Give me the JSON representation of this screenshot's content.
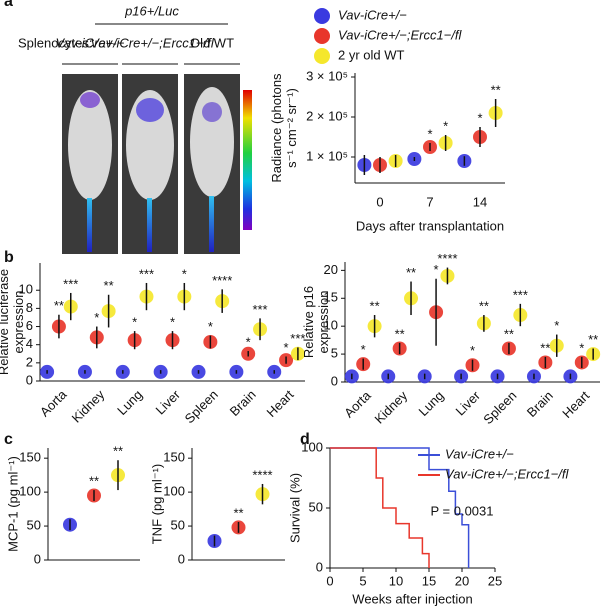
{
  "panel_labels": [
    "a",
    "b",
    "c",
    "d"
  ],
  "imaging": {
    "group": "Splenocytes:",
    "header": "p16+/Luc",
    "labels": [
      "Vav-iCre+/−",
      "Vav-iCre+/−;Ercc1−/fl",
      "Old WT"
    ]
  },
  "chart_data": [
    {
      "type": "dot",
      "categories": [
        "0",
        "7",
        "14"
      ],
      "xlabel": "Days after transplantation",
      "ylabel": [
        "Radiance (photons",
        "s⁻¹ cm⁻² sr⁻¹)"
      ],
      "ylim": [
        35000,
        310000
      ],
      "yticks": [
        {
          "value": 100000,
          "label": "1 × 10⁵"
        },
        {
          "value": 200000,
          "label": "2 × 10⁵"
        },
        {
          "value": 300000,
          "label": "3 × 10⁵"
        }
      ],
      "legend": true,
      "series": [
        {
          "name": "Vav-iCre+/−",
          "color": "#3a3ae0",
          "values": [
            80000,
            95000,
            90000
          ],
          "errors": [
            25000,
            5000,
            12000
          ]
        },
        {
          "name": "Vav-iCre+/−;Ercc1−/fl",
          "color": "#e8362b",
          "values": [
            80000,
            125000,
            150000
          ],
          "errors": [
            20000,
            10000,
            25000
          ],
          "stars": [
            null,
            "*",
            "*"
          ]
        },
        {
          "name": "2 yr old WT",
          "color": "#f5e72c",
          "values": [
            90000,
            135000,
            210000
          ],
          "errors": [
            15000,
            20000,
            35000
          ],
          "stars": [
            null,
            "*",
            "**"
          ]
        }
      ]
    },
    {
      "type": "dot",
      "categories": [
        "Aorta",
        "Kidney",
        "Lung",
        "Liver",
        "Spleen",
        "Brain",
        "Heart"
      ],
      "ylabel": [
        "Relative luciferase",
        "expression"
      ],
      "ylim": [
        0,
        13
      ],
      "yticks": [
        0,
        2,
        4,
        6,
        8,
        10
      ],
      "series": [
        {
          "color": "#3a3ae0",
          "values": [
            1,
            1,
            1,
            1,
            1,
            1,
            1
          ],
          "errors": [
            0.2,
            0.2,
            0.2,
            0.2,
            0.2,
            0.2,
            0.2
          ]
        },
        {
          "color": "#e8362b",
          "values": [
            6,
            4.8,
            4.5,
            4.5,
            4.3,
            3,
            2.3
          ],
          "errors": [
            1.3,
            1.2,
            1,
            1,
            0.7,
            0.3,
            0.4
          ],
          "stars": [
            "**",
            "*",
            "*",
            "*",
            "*",
            "*",
            "*"
          ]
        },
        {
          "color": "#f5e72c",
          "values": [
            8.2,
            7.7,
            9.3,
            9.3,
            8.8,
            5.7,
            3
          ],
          "errors": [
            1.5,
            1.8,
            1.5,
            1.5,
            1.3,
            1.2,
            0.7
          ],
          "stars": [
            "***",
            "**",
            "***",
            "*",
            "****",
            "***",
            "***"
          ]
        }
      ]
    },
    {
      "type": "dot",
      "categories": [
        "Aorta",
        "Kidney",
        "Lung",
        "Liver",
        "Spleen",
        "Brain",
        "Heart"
      ],
      "ylabel": [
        "Relative p16",
        "expression"
      ],
      "ylim": [
        0,
        21.5
      ],
      "yticks": [
        0,
        5,
        10,
        15,
        20
      ],
      "series": [
        {
          "color": "#3a3ae0",
          "values": [
            1,
            1,
            1,
            1,
            1,
            1,
            1
          ],
          "errors": [
            0.5,
            0.5,
            0.5,
            0.5,
            0.5,
            0.5,
            0.5
          ]
        },
        {
          "color": "#e8362b",
          "values": [
            3.2,
            6,
            12.5,
            3,
            6,
            3.5,
            3.5
          ],
          "errors": [
            1,
            1,
            6,
            1,
            1,
            1,
            1
          ],
          "stars": [
            "*",
            "**",
            "*",
            "*",
            "**",
            "**",
            "*"
          ]
        },
        {
          "color": "#f5e72c",
          "values": [
            10,
            15,
            19,
            10.5,
            12,
            6.5,
            5
          ],
          "errors": [
            2,
            3,
            1.5,
            1.5,
            2,
            2,
            1
          ],
          "stars": [
            "**",
            "**",
            "****",
            "**",
            "***",
            "*",
            "**"
          ]
        }
      ]
    },
    {
      "type": "dot",
      "categories": [
        null
      ],
      "ylabel": [
        "MCP-1 (pg ml⁻¹)"
      ],
      "ylim": [
        0,
        165
      ],
      "yticks": [
        0,
        50,
        100,
        150
      ],
      "series": [
        {
          "color": "#3a3ae0",
          "values": [
            52
          ],
          "errors": [
            8
          ]
        },
        {
          "color": "#e8362b",
          "values": [
            95
          ],
          "errors": [
            8
          ],
          "stars": [
            "**"
          ]
        },
        {
          "color": "#f5e72c",
          "values": [
            125
          ],
          "errors": [
            22
          ],
          "stars": [
            "**"
          ]
        }
      ]
    },
    {
      "type": "dot",
      "categories": [
        null
      ],
      "ylabel": [
        "TNF (pg ml⁻¹)"
      ],
      "ylim": [
        0,
        165
      ],
      "yticks": [
        0,
        50,
        100,
        150
      ],
      "series": [
        {
          "color": "#3a3ae0",
          "values": [
            28
          ],
          "errors": [
            8
          ]
        },
        {
          "color": "#e8362b",
          "values": [
            48
          ],
          "errors": [
            8
          ],
          "stars": [
            "**"
          ]
        },
        {
          "color": "#f5e72c",
          "values": [
            97
          ],
          "errors": [
            15
          ],
          "stars": [
            "****"
          ]
        }
      ]
    },
    {
      "type": "step",
      "xlabel": "Weeks after injection",
      "ylabel": [
        "Survival (%)"
      ],
      "xlim": [
        0,
        25
      ],
      "xticks": [
        0,
        5,
        10,
        15,
        20,
        25
      ],
      "ylim": [
        0,
        100
      ],
      "yticks": [
        0,
        50,
        100
      ],
      "annotation": "P = 0.0031",
      "legend": true,
      "series": [
        {
          "name": "Vav-iCre+/−",
          "color": "#3b4fd8",
          "x": [
            0,
            15,
            18,
            19,
            20,
            21
          ],
          "values": [
            100,
            82,
            64,
            45,
            36,
            18
          ]
        },
        {
          "name": "Vav-iCre+/−;Ercc1−/fl",
          "color": "#e8362b",
          "x": [
            0,
            7,
            8,
            10,
            12,
            14,
            15
          ],
          "values": [
            100,
            75,
            50,
            37,
            25,
            12,
            0
          ]
        }
      ]
    }
  ]
}
